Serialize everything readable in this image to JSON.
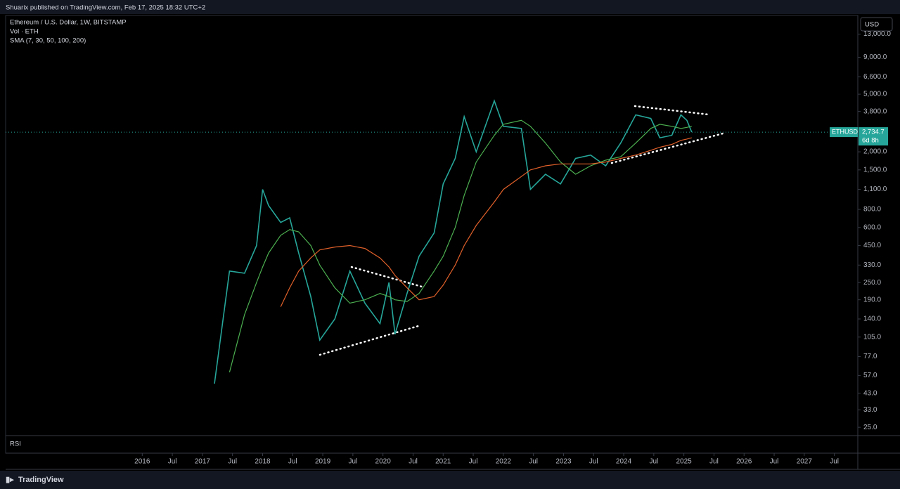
{
  "header": {
    "publisher": "Shuarix published on TradingView.com, Feb 17, 2025 18:32 UTC+2",
    "brand": "TradingView"
  },
  "chart_data": {
    "type": "line",
    "title": "Ethereum / U.S. Dollar, 1W, BITSTAMP",
    "volume_label": "Vol · ETH",
    "sma_label": "SMA (7, 30, 50, 100, 200)",
    "currency": "USD",
    "indicator": "RSI",
    "symbol": "ETHUSD",
    "last_price": {
      "value": 2734.7,
      "label": "2,734.7"
    },
    "countdown": "6d 8h",
    "log_scale": true,
    "grid": false,
    "x": [
      2017.2,
      2017.45,
      2017.7,
      2017.9,
      2018.0,
      2018.1,
      2018.3,
      2018.45,
      2018.6,
      2018.8,
      2018.95,
      2019.2,
      2019.45,
      2019.7,
      2019.95,
      2020.1,
      2020.2,
      2020.4,
      2020.6,
      2020.85,
      2021.0,
      2021.2,
      2021.35,
      2021.55,
      2021.85,
      2022.0,
      2022.3,
      2022.45,
      2022.7,
      2022.95,
      2023.2,
      2023.45,
      2023.7,
      2023.95,
      2024.2,
      2024.45,
      2024.6,
      2024.8,
      2024.95,
      2025.05,
      2025.13
    ],
    "series": [
      {
        "color": "#26a69a",
        "values": [
          50,
          300,
          290,
          450,
          1100,
          850,
          650,
          700,
          400,
          200,
          100,
          140,
          300,
          180,
          130,
          250,
          110,
          210,
          380,
          550,
          1200,
          1800,
          3500,
          2000,
          4500,
          3000,
          2900,
          1100,
          1400,
          1200,
          1800,
          1900,
          1600,
          2300,
          3600,
          3400,
          2500,
          2600,
          3600,
          3300,
          2734.7
        ]
      },
      {
        "color": "#4caf50",
        "values": [
          null,
          60,
          150,
          250,
          320,
          400,
          530,
          580,
          560,
          450,
          330,
          230,
          180,
          190,
          210,
          200,
          190,
          185,
          210,
          300,
          380,
          600,
          1000,
          1700,
          2600,
          3100,
          3300,
          3000,
          2300,
          1700,
          1400,
          1600,
          1750,
          1850,
          2300,
          2900,
          3100,
          3000,
          2900,
          2950,
          3000
        ]
      },
      {
        "color": "#e0602a",
        "values": [
          null,
          null,
          null,
          null,
          null,
          null,
          170,
          230,
          300,
          370,
          420,
          440,
          450,
          430,
          370,
          320,
          280,
          230,
          190,
          200,
          240,
          330,
          450,
          620,
          900,
          1100,
          1350,
          1500,
          1600,
          1650,
          1650,
          1650,
          1700,
          1800,
          1900,
          2050,
          2150,
          2250,
          2400,
          2450,
          2500
        ]
      }
    ],
    "xlim": [
      2013.73,
      2027.89
    ],
    "xticks": [
      {
        "value": 2016,
        "label": "2016"
      },
      {
        "value": 2016.5,
        "label": "Jul"
      },
      {
        "value": 2017,
        "label": "2017"
      },
      {
        "value": 2017.5,
        "label": "Jul"
      },
      {
        "value": 2018,
        "label": "2018"
      },
      {
        "value": 2018.5,
        "label": "Jul"
      },
      {
        "value": 2019,
        "label": "2019"
      },
      {
        "value": 2019.5,
        "label": "Jul"
      },
      {
        "value": 2020,
        "label": "2020"
      },
      {
        "value": 2020.5,
        "label": "Jul"
      },
      {
        "value": 2021,
        "label": "2021"
      },
      {
        "value": 2021.5,
        "label": "Jul"
      },
      {
        "value": 2022,
        "label": "2022"
      },
      {
        "value": 2022.5,
        "label": "Jul"
      },
      {
        "value": 2023,
        "label": "2023"
      },
      {
        "value": 2023.5,
        "label": "Jul"
      },
      {
        "value": 2024,
        "label": "2024"
      },
      {
        "value": 2024.5,
        "label": "Jul"
      },
      {
        "value": 2025,
        "label": "2025"
      },
      {
        "value": 2025.5,
        "label": "Jul"
      },
      {
        "value": 2026,
        "label": "2026"
      },
      {
        "value": 2026.5,
        "label": "Jul"
      },
      {
        "value": 2027,
        "label": "2027"
      },
      {
        "value": 2027.5,
        "label": "Jul"
      }
    ],
    "ylim": [
      21.9,
      17500
    ],
    "yticks": [
      {
        "value": 25,
        "label": "25.0"
      },
      {
        "value": 33,
        "label": "33.0"
      },
      {
        "value": 43,
        "label": "43.0"
      },
      {
        "value": 57,
        "label": "57.0"
      },
      {
        "value": 77,
        "label": "77.0"
      },
      {
        "value": 105,
        "label": "105.0"
      },
      {
        "value": 140,
        "label": "140.0"
      },
      {
        "value": 190,
        "label": "190.0"
      },
      {
        "value": 250,
        "label": "250.0"
      },
      {
        "value": 330,
        "label": "330.0"
      },
      {
        "value": 450,
        "label": "450.0"
      },
      {
        "value": 600,
        "label": "600.0"
      },
      {
        "value": 800,
        "label": "800.0"
      },
      {
        "value": 1100,
        "label": "1,100.0"
      },
      {
        "value": 1500,
        "label": "1,500.0"
      },
      {
        "value": 2000,
        "label": "2,000.0"
      },
      {
        "value": 3800,
        "label": "3,800.0"
      },
      {
        "value": 5000,
        "label": "5,000.0"
      },
      {
        "value": 6600,
        "label": "6,600.0"
      },
      {
        "value": 9000,
        "label": "9,000.0"
      },
      {
        "value": 13000,
        "label": "13,000.0"
      }
    ]
  }
}
